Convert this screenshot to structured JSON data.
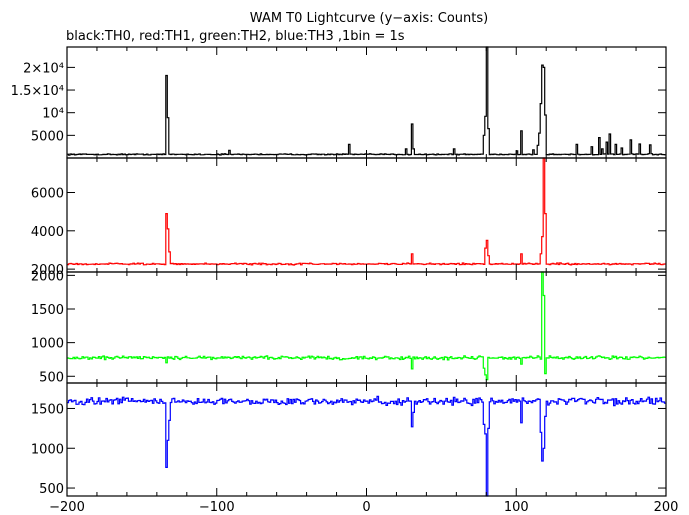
{
  "chart_data": {
    "type": "line",
    "title": "WAM T0 Lightcurve (y−axis: Counts)",
    "subtitle": "black:TH0, red:TH1, green:TH2, blue:TH3 ,1bin = 1s",
    "xlim": [
      -200,
      200
    ],
    "x_ticks": [
      -200,
      -100,
      0,
      100,
      200
    ],
    "x_tick_labels": [
      "−200",
      "−100",
      "0",
      "100",
      "200"
    ],
    "grid": false,
    "panels": [
      {
        "series": "TH0",
        "color": "#000000",
        "ylim": [
          0,
          24500
        ],
        "baseline": 800,
        "noise": 120,
        "y_ticks": [
          5000,
          10000,
          15000,
          20000
        ],
        "y_tick_labels": [
          "5000",
          "10⁴",
          "1.5×10⁴",
          "2×10⁴"
        ],
        "features": [
          [
            -134,
            18200
          ],
          [
            -133,
            8900
          ],
          [
            -92,
            1700
          ],
          [
            -12,
            3000
          ],
          [
            26,
            2000
          ],
          [
            30,
            7500
          ],
          [
            31,
            2000
          ],
          [
            58,
            2000
          ],
          [
            78,
            5000
          ],
          [
            79,
            9200
          ],
          [
            80,
            24500
          ],
          [
            81,
            6500
          ],
          [
            100,
            1600
          ],
          [
            103,
            6000
          ],
          [
            111,
            1800
          ],
          [
            114,
            2800
          ],
          [
            115,
            5500
          ],
          [
            116,
            12000
          ],
          [
            117,
            20500
          ],
          [
            118,
            20000
          ],
          [
            119,
            9500
          ],
          [
            140,
            3000
          ],
          [
            150,
            2500
          ],
          [
            155,
            4500
          ],
          [
            157,
            2000
          ],
          [
            160,
            3500
          ],
          [
            162,
            5300
          ],
          [
            166,
            3000
          ],
          [
            170,
            2200
          ],
          [
            176,
            4000
          ],
          [
            182,
            3100
          ],
          [
            189,
            2900
          ]
        ]
      },
      {
        "series": "TH1",
        "color": "#ff0000",
        "ylim": [
          1850,
          7800
        ],
        "baseline": 2270,
        "noise": 40,
        "y_ticks": [
          2000,
          4000,
          6000
        ],
        "y_tick_labels": [
          "2000",
          "4000",
          "6000"
        ],
        "features": [
          [
            -134,
            4900
          ],
          [
            -133,
            4100
          ],
          [
            -132,
            2900
          ],
          [
            30,
            2800
          ],
          [
            79,
            3100
          ],
          [
            80,
            3500
          ],
          [
            81,
            2700
          ],
          [
            103,
            2800
          ],
          [
            116,
            2800
          ],
          [
            117,
            3700
          ],
          [
            118,
            7800
          ],
          [
            119,
            4900
          ]
        ]
      },
      {
        "series": "TH2",
        "color": "#00ff00",
        "ylim": [
          400,
          2050
        ],
        "baseline": 775,
        "noise": 25,
        "y_ticks": [
          500,
          1000,
          1500,
          2000
        ],
        "y_tick_labels": [
          "500",
          "1000",
          "1500",
          "2000"
        ],
        "features": [
          [
            -134,
            700
          ],
          [
            30,
            610
          ],
          [
            78,
            620
          ],
          [
            79,
            520
          ],
          [
            80,
            450
          ],
          [
            103,
            680
          ],
          [
            117,
            2050
          ],
          [
            118,
            1700
          ],
          [
            119,
            540
          ]
        ]
      },
      {
        "series": "TH3",
        "color": "#0000ff",
        "ylim": [
          400,
          1820
        ],
        "baseline": 1590,
        "noise": 45,
        "y_ticks": [
          500,
          1000,
          1500
        ],
        "y_tick_labels": [
          "500",
          "1000",
          "1500"
        ],
        "features": [
          [
            -134,
            760
          ],
          [
            -133,
            1100
          ],
          [
            -132,
            1350
          ],
          [
            30,
            1270
          ],
          [
            31,
            1450
          ],
          [
            78,
            1300
          ],
          [
            79,
            1180
          ],
          [
            80,
            400
          ],
          [
            81,
            1250
          ],
          [
            103,
            1320
          ],
          [
            116,
            1200
          ],
          [
            117,
            840
          ],
          [
            118,
            1000
          ],
          [
            119,
            1400
          ]
        ]
      }
    ]
  }
}
